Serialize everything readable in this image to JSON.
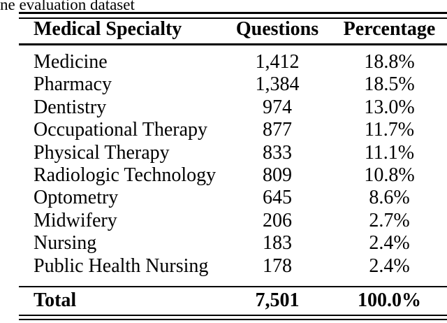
{
  "page": {
    "background_color": "#ffffff",
    "text_color": "#000000",
    "rule_color": "#000000"
  },
  "caption": {
    "text": "ne evaluation dataset"
  },
  "table": {
    "columns": [
      {
        "label": "Medical Specialty"
      },
      {
        "label": "Questions"
      },
      {
        "label": "Percentage"
      }
    ],
    "rows": [
      {
        "specialty": "Medicine",
        "questions": "1,412",
        "percentage": "18.8%"
      },
      {
        "specialty": "Pharmacy",
        "questions": "1,384",
        "percentage": "18.5%"
      },
      {
        "specialty": "Dentistry",
        "questions": "974",
        "percentage": "13.0%"
      },
      {
        "specialty": "Occupational Therapy",
        "questions": "877",
        "percentage": "11.7%"
      },
      {
        "specialty": "Physical Therapy",
        "questions": "833",
        "percentage": "11.1%"
      },
      {
        "specialty": "Radiologic Technology",
        "questions": "809",
        "percentage": "10.8%"
      },
      {
        "specialty": "Optometry",
        "questions": "645",
        "percentage": "8.6%"
      },
      {
        "specialty": "Midwifery",
        "questions": "206",
        "percentage": "2.7%"
      },
      {
        "specialty": "Nursing",
        "questions": "183",
        "percentage": "2.4%"
      },
      {
        "specialty": "Public Health Nursing",
        "questions": "178",
        "percentage": "2.4%"
      }
    ],
    "total": {
      "label": "Total",
      "questions": "7,501",
      "percentage": "100.0%"
    }
  },
  "chart_data": {
    "type": "table",
    "title": "ne evaluation dataset",
    "categories": [
      "Medicine",
      "Pharmacy",
      "Dentistry",
      "Occupational Therapy",
      "Physical Therapy",
      "Radiologic Technology",
      "Optometry",
      "Midwifery",
      "Nursing",
      "Public Health Nursing"
    ],
    "series": [
      {
        "name": "Questions",
        "values": [
          1412,
          1384,
          974,
          877,
          833,
          809,
          645,
          206,
          183,
          178
        ]
      },
      {
        "name": "Percentage",
        "values": [
          18.8,
          18.5,
          13.0,
          11.7,
          11.1,
          10.8,
          8.6,
          2.7,
          2.4,
          2.4
        ]
      }
    ],
    "total": {
      "Questions": 7501,
      "Percentage": 100.0
    }
  }
}
